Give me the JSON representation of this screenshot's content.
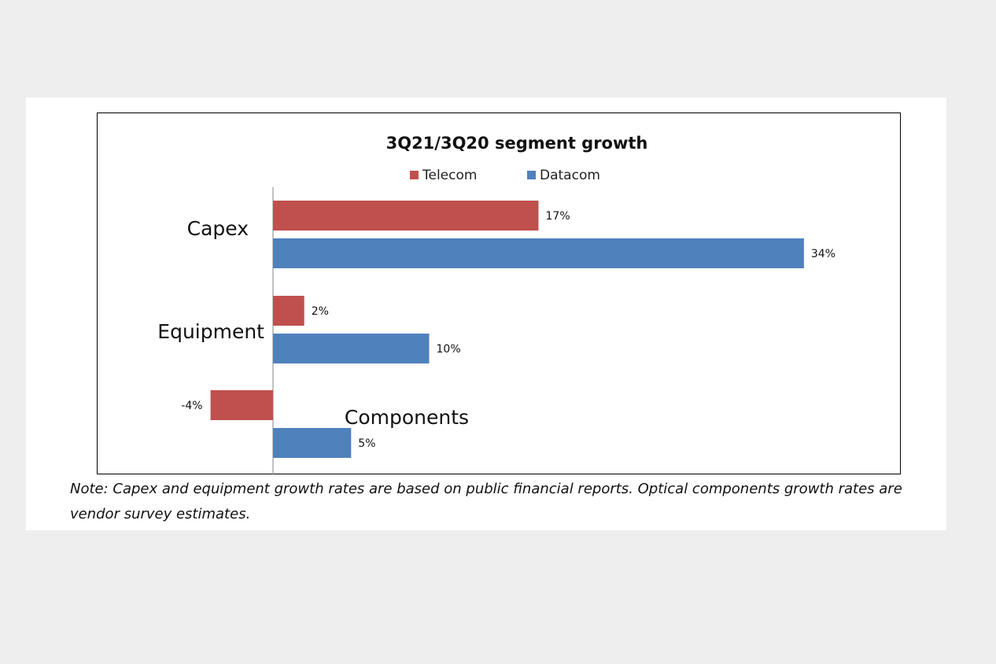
{
  "chart_data": {
    "type": "bar",
    "orientation": "horizontal",
    "title": "3Q21/3Q20 segment growth",
    "categories": [
      "Capex",
      "Equipment",
      "Components"
    ],
    "series": [
      {
        "name": "Telecom",
        "color": "#c0504d",
        "values": [
          17,
          2,
          -4
        ],
        "labels": [
          "17%",
          "2%",
          "-4%"
        ]
      },
      {
        "name": "Datacom",
        "color": "#4f81bd",
        "values": [
          34,
          10,
          5
        ],
        "labels": [
          "34%",
          "10%",
          "5%"
        ]
      }
    ],
    "legend_position": "top",
    "grid": false,
    "xlim": [
      -4.5,
      34.3
    ]
  },
  "note": "Note: Capex and equipment growth rates are based on public financial reports. Optical components growth rates are vendor survey estimates."
}
